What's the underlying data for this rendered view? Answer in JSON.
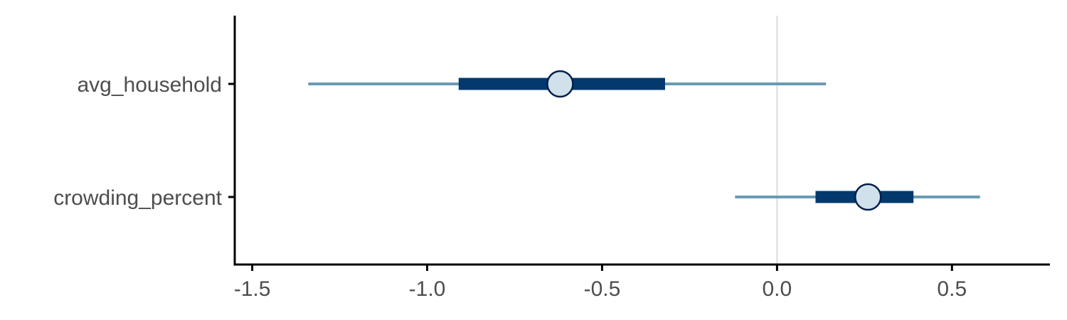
{
  "chart_data": {
    "type": "interval",
    "title": "",
    "xlabel": "",
    "ylabel": "",
    "xlim": [
      -1.55,
      0.78
    ],
    "xticks": [
      -1.5,
      -1.0,
      -0.5,
      0.0,
      0.5
    ],
    "xtick_labels": [
      "-1.5",
      "-1.0",
      "-0.5",
      "0.0",
      "0.5"
    ],
    "reference_line": 0.0,
    "grid": false,
    "categories": [
      "avg_household",
      "crowding_percent"
    ],
    "estimates": [
      {
        "parameter": "avg_household",
        "point": -0.62,
        "inner": [
          -0.91,
          -0.32
        ],
        "outer": [
          -1.34,
          0.14
        ]
      },
      {
        "parameter": "crowding_percent",
        "point": 0.26,
        "inner": [
          0.11,
          0.39
        ],
        "outer": [
          -0.12,
          0.58
        ]
      }
    ],
    "colors": {
      "outer_interval": "#6a9ab3",
      "inner_interval": "#03396c",
      "point_fill": "#d1e1ec",
      "point_stroke": "#011f4b",
      "reference_line": "#e5e5e5",
      "axis": "#000000",
      "tick_label": "#4d4d4d"
    }
  }
}
